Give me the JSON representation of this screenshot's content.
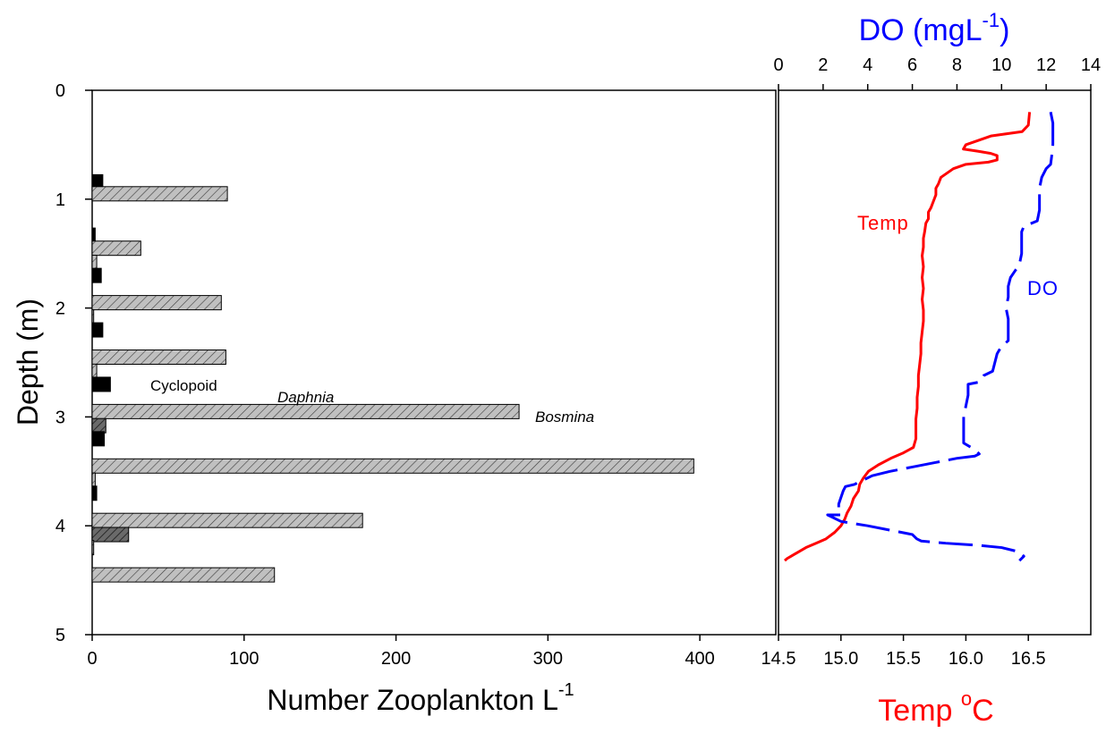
{
  "chart_data": [
    {
      "type": "bar",
      "orientation": "horizontal",
      "xlabel": "Number Zooplankton L",
      "xlabel_superscript": "-1",
      "ylabel": "Depth (m)",
      "xlim": [
        0,
        450
      ],
      "ylim": [
        0,
        5
      ],
      "y_inverted": true,
      "xticks": [
        "0",
        "100",
        "200",
        "300",
        "400"
      ],
      "yticks": [
        "0",
        "1",
        "2",
        "3",
        "4",
        "5"
      ],
      "annotations": [
        {
          "text": "Cyclopoid",
          "style": "normal"
        },
        {
          "text": "Daphnia",
          "style": "italic"
        },
        {
          "text": "Bosmina",
          "style": "italic"
        }
      ],
      "bar_colors": {
        "solid": "#000000",
        "hatch_light": "#c0c0c0",
        "hatch_dark": "#555555"
      },
      "bars": [
        {
          "depth": 0.89,
          "value": 7,
          "style": "solid"
        },
        {
          "depth": 1.0,
          "value": 89,
          "style": "hatch_light"
        },
        {
          "depth": 1.38,
          "value": 2,
          "style": "solid"
        },
        {
          "depth": 1.5,
          "value": 32,
          "style": "hatch_light"
        },
        {
          "depth": 1.63,
          "value": 3,
          "style": "hatch_light"
        },
        {
          "depth": 1.75,
          "value": 6,
          "style": "solid"
        },
        {
          "depth": 2.0,
          "value": 85,
          "style": "hatch_light"
        },
        {
          "depth": 2.13,
          "value": 1,
          "style": "hatch_light"
        },
        {
          "depth": 2.25,
          "value": 7,
          "style": "solid"
        },
        {
          "depth": 2.5,
          "value": 88,
          "style": "hatch_light"
        },
        {
          "depth": 2.63,
          "value": 3,
          "style": "hatch_light"
        },
        {
          "depth": 2.75,
          "value": 12,
          "style": "solid"
        },
        {
          "depth": 3.0,
          "value": 281,
          "style": "hatch_light"
        },
        {
          "depth": 3.13,
          "value": 9,
          "style": "hatch_dark"
        },
        {
          "depth": 3.25,
          "value": 8,
          "style": "solid"
        },
        {
          "depth": 3.5,
          "value": 396,
          "style": "hatch_light"
        },
        {
          "depth": 3.63,
          "value": 2,
          "style": "hatch_light"
        },
        {
          "depth": 3.75,
          "value": 3,
          "style": "solid"
        },
        {
          "depth": 4.0,
          "value": 178,
          "style": "hatch_light"
        },
        {
          "depth": 4.13,
          "value": 24,
          "style": "hatch_dark"
        },
        {
          "depth": 4.25,
          "value": 1,
          "style": "hatch_light"
        },
        {
          "depth": 4.5,
          "value": 120,
          "style": "hatch_light"
        }
      ]
    },
    {
      "type": "line",
      "title": "",
      "y_shared": "Depth (m)",
      "top_axis": {
        "label": "DO (mgL",
        "label_superscript": "-1",
        "label_close": ")",
        "range": [
          0,
          14
        ],
        "ticks": [
          "0",
          "2",
          "4",
          "6",
          "8",
          "10",
          "12",
          "14"
        ],
        "color": "#0000ff"
      },
      "bottom_axis": {
        "label": "Temp ",
        "label_superscript": "o",
        "label_unit": "C",
        "range": [
          14.5,
          17.0
        ],
        "ticks": [
          "14.5",
          "15.0",
          "15.5",
          "16.0",
          "16.5"
        ],
        "color": "#ff0000"
      },
      "series": [
        {
          "name": "Temp",
          "axis": "bottom",
          "color": "#ff0000",
          "dash": "solid",
          "points": [
            [
              16.51,
              0.2
            ],
            [
              16.5,
              0.32
            ],
            [
              16.45,
              0.38
            ],
            [
              16.2,
              0.42
            ],
            [
              16.1,
              0.46
            ],
            [
              16.0,
              0.5
            ],
            [
              15.98,
              0.54
            ],
            [
              16.1,
              0.56
            ],
            [
              16.2,
              0.58
            ],
            [
              16.25,
              0.6
            ],
            [
              16.25,
              0.64
            ],
            [
              16.18,
              0.66
            ],
            [
              16.0,
              0.68
            ],
            [
              15.9,
              0.72
            ],
            [
              15.85,
              0.76
            ],
            [
              15.8,
              0.8
            ],
            [
              15.78,
              0.86
            ],
            [
              15.76,
              0.9
            ],
            [
              15.76,
              0.96
            ],
            [
              15.74,
              1.02
            ],
            [
              15.72,
              1.08
            ],
            [
              15.7,
              1.12
            ],
            [
              15.7,
              1.18
            ],
            [
              15.68,
              1.22
            ],
            [
              15.67,
              1.3
            ],
            [
              15.66,
              1.36
            ],
            [
              15.66,
              1.44
            ],
            [
              15.65,
              1.52
            ],
            [
              15.66,
              1.62
            ],
            [
              15.65,
              1.72
            ],
            [
              15.66,
              1.82
            ],
            [
              15.65,
              1.92
            ],
            [
              15.66,
              2.02
            ],
            [
              15.66,
              2.12
            ],
            [
              15.65,
              2.22
            ],
            [
              15.64,
              2.32
            ],
            [
              15.64,
              2.42
            ],
            [
              15.63,
              2.52
            ],
            [
              15.62,
              2.62
            ],
            [
              15.62,
              2.72
            ],
            [
              15.61,
              2.82
            ],
            [
              15.61,
              2.92
            ],
            [
              15.6,
              3.02
            ],
            [
              15.6,
              3.12
            ],
            [
              15.6,
              3.2
            ],
            [
              15.58,
              3.28
            ],
            [
              15.5,
              3.33
            ],
            [
              15.4,
              3.38
            ],
            [
              15.3,
              3.44
            ],
            [
              15.22,
              3.5
            ],
            [
              15.18,
              3.56
            ],
            [
              15.15,
              3.62
            ],
            [
              15.14,
              3.68
            ],
            [
              15.1,
              3.75
            ],
            [
              15.08,
              3.82
            ],
            [
              15.05,
              3.88
            ],
            [
              15.03,
              3.94
            ],
            [
              15.0,
              4.0
            ],
            [
              14.95,
              4.06
            ],
            [
              14.88,
              4.12
            ],
            [
              14.8,
              4.16
            ],
            [
              14.72,
              4.2
            ],
            [
              14.66,
              4.24
            ],
            [
              14.6,
              4.28
            ],
            [
              14.57,
              4.3
            ],
            [
              14.55,
              4.32
            ]
          ]
        },
        {
          "name": "DO",
          "axis": "top",
          "color": "#0000ff",
          "dash": "dashed",
          "points": [
            [
              12.2,
              0.2
            ],
            [
              12.3,
              0.3
            ],
            [
              12.3,
              0.4
            ],
            [
              12.3,
              0.5
            ],
            [
              12.25,
              0.6
            ],
            [
              12.2,
              0.68
            ],
            [
              12.0,
              0.72
            ],
            [
              11.8,
              0.8
            ],
            [
              11.7,
              0.9
            ],
            [
              11.7,
              1.0
            ],
            [
              11.7,
              1.1
            ],
            [
              11.6,
              1.2
            ],
            [
              11.0,
              1.25
            ],
            [
              10.9,
              1.3
            ],
            [
              10.9,
              1.4
            ],
            [
              10.9,
              1.5
            ],
            [
              10.8,
              1.6
            ],
            [
              10.6,
              1.66
            ],
            [
              10.4,
              1.72
            ],
            [
              10.3,
              1.8
            ],
            [
              10.3,
              1.9
            ],
            [
              10.2,
              2.0
            ],
            [
              10.3,
              2.1
            ],
            [
              10.3,
              2.2
            ],
            [
              10.3,
              2.3
            ],
            [
              10.0,
              2.35
            ],
            [
              9.8,
              2.42
            ],
            [
              9.7,
              2.5
            ],
            [
              9.6,
              2.58
            ],
            [
              9.2,
              2.62
            ],
            [
              9.0,
              2.68
            ],
            [
              8.5,
              2.7
            ],
            [
              8.5,
              2.8
            ],
            [
              8.4,
              2.9
            ],
            [
              8.3,
              3.0
            ],
            [
              8.3,
              3.1
            ],
            [
              8.3,
              3.2
            ],
            [
              8.3,
              3.24
            ],
            [
              8.8,
              3.3
            ],
            [
              9.0,
              3.34
            ],
            [
              8.8,
              3.36
            ],
            [
              8.0,
              3.38
            ],
            [
              7.0,
              3.42
            ],
            [
              6.0,
              3.46
            ],
            [
              5.0,
              3.5
            ],
            [
              4.2,
              3.54
            ],
            [
              3.8,
              3.58
            ],
            [
              3.4,
              3.62
            ],
            [
              3.0,
              3.64
            ],
            [
              2.9,
              3.68
            ],
            [
              2.8,
              3.74
            ],
            [
              2.7,
              3.8
            ],
            [
              2.7,
              3.86
            ],
            [
              2.8,
              3.9
            ],
            [
              2.2,
              3.9
            ],
            [
              2.8,
              3.96
            ],
            [
              4.0,
              4.0
            ],
            [
              5.0,
              4.04
            ],
            [
              6.0,
              4.08
            ],
            [
              6.2,
              4.12
            ],
            [
              6.4,
              4.14
            ],
            [
              7.5,
              4.16
            ],
            [
              9.0,
              4.18
            ],
            [
              10.0,
              4.2
            ],
            [
              10.8,
              4.24
            ],
            [
              11.0,
              4.28
            ],
            [
              10.8,
              4.32
            ]
          ]
        }
      ],
      "annotations": [
        {
          "text": "Temp",
          "color": "#ff0000"
        },
        {
          "text": "DO",
          "color": "#0000ff"
        }
      ]
    }
  ]
}
